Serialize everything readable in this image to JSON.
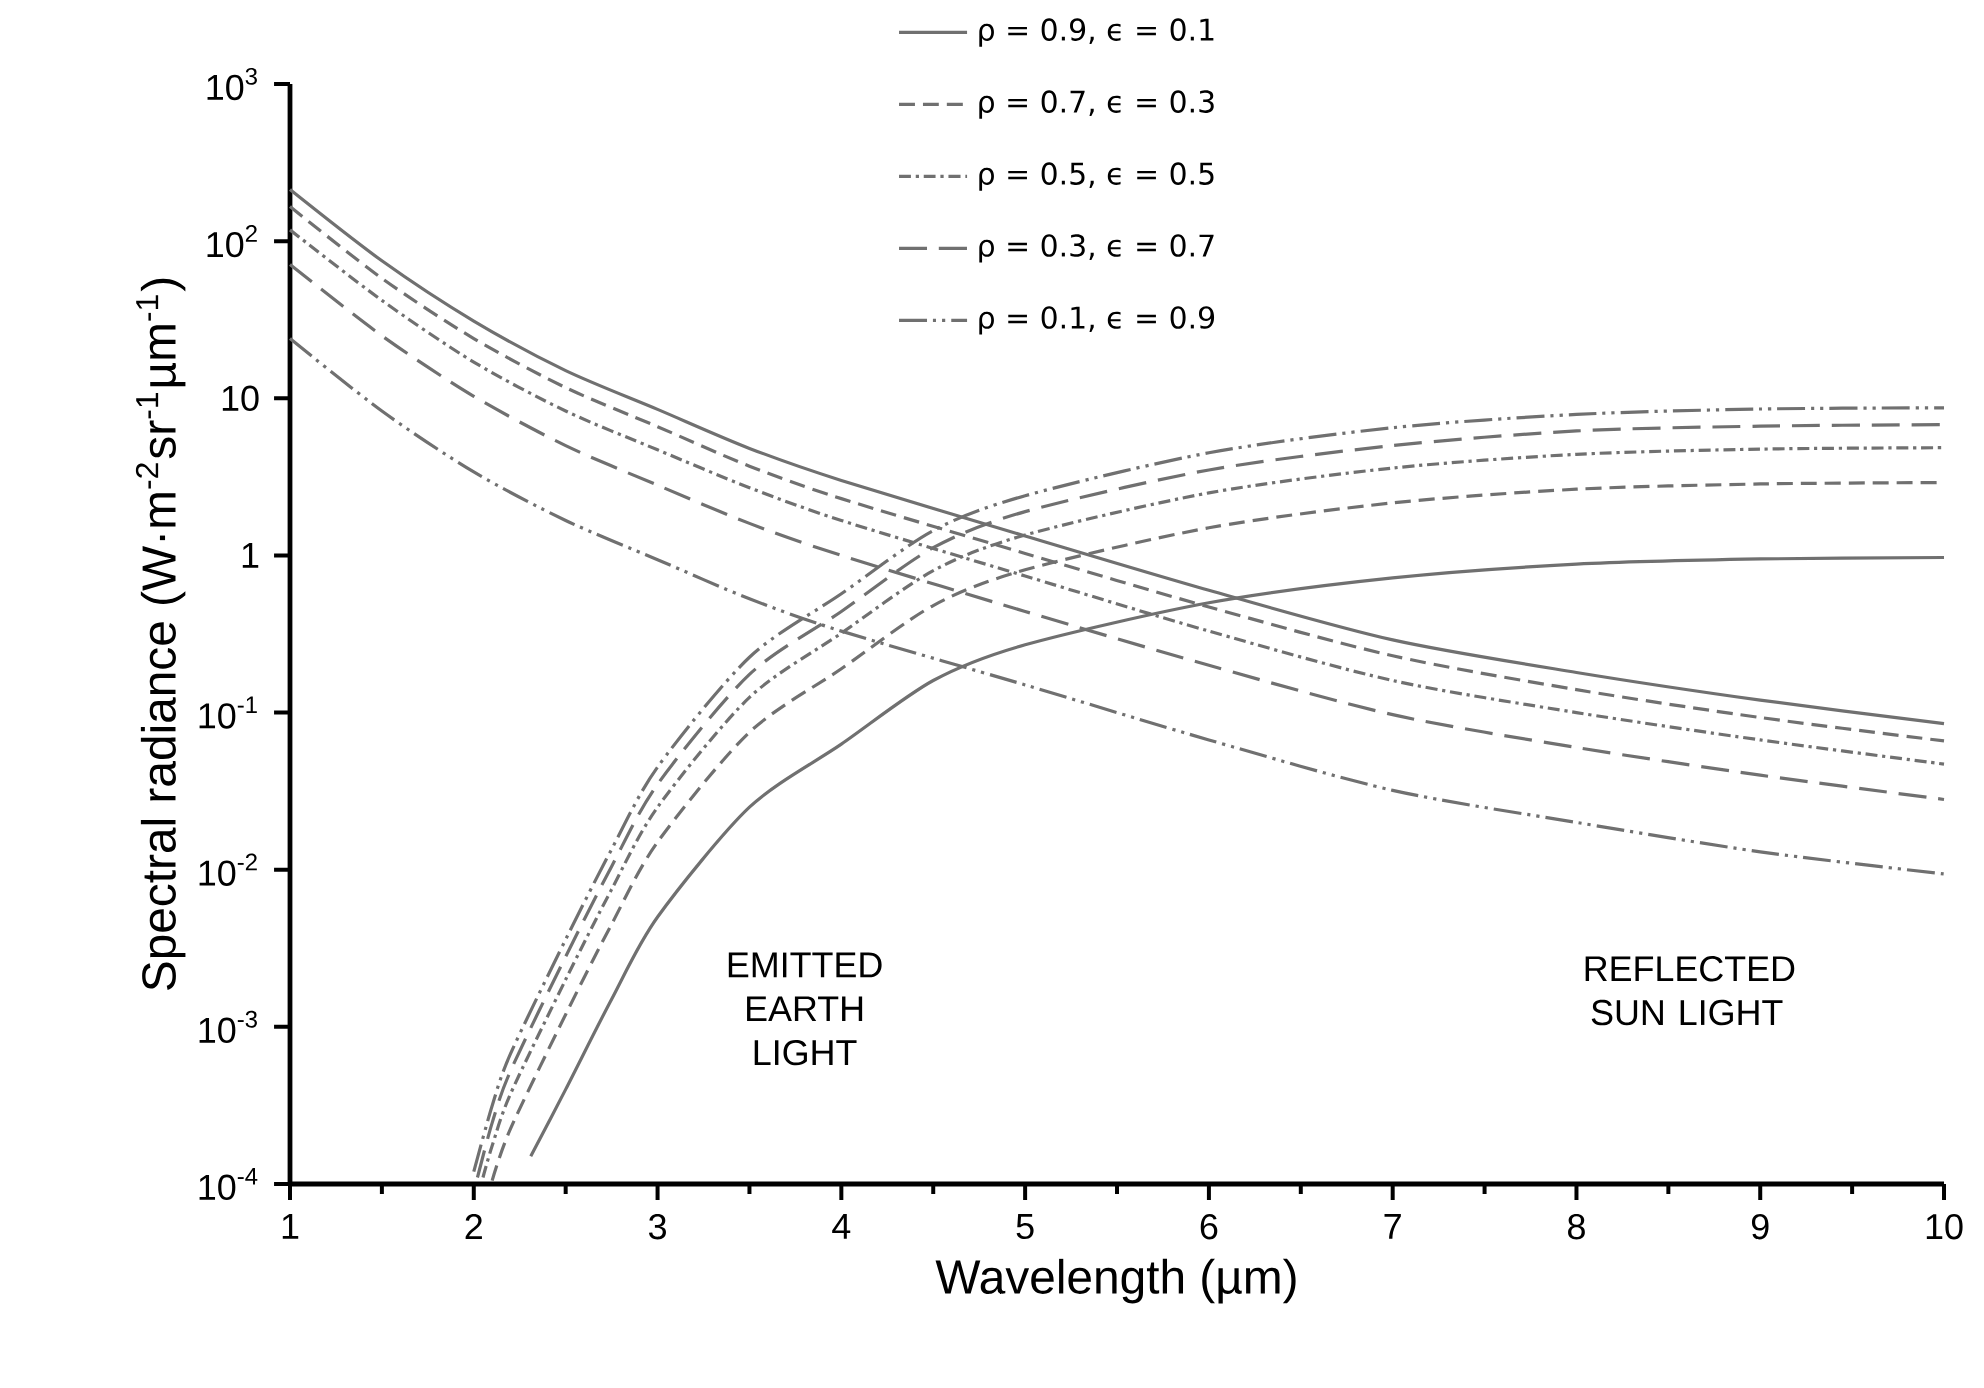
{
  "chart_data": {
    "type": "line",
    "xlabel": "Wavelength (µm)",
    "ylabel": "Spectral radiance (W·m$^{-2}$sr$^{-1}$µm$^{-1}$)",
    "xlim": [
      1,
      10
    ],
    "ylim": [
      0.0001,
      1000
    ],
    "log": "y",
    "legend": "top",
    "xticks": [
      1,
      2,
      3,
      4,
      5,
      6,
      7,
      8,
      9,
      10
    ],
    "yticks": [
      {
        "value": 0.0001,
        "label": "10$^{-4}$"
      },
      {
        "value": 0.001,
        "label": "10$^{-3}$"
      },
      {
        "value": 0.01,
        "label": "10$^{-2}$"
      },
      {
        "value": 0.1,
        "label": "10$^{-1}$"
      },
      1,
      10,
      {
        "value": 100,
        "label": "10$^{2}$"
      },
      {
        "value": 1000,
        "label": "10$^{3}$"
      }
    ],
    "annotations": [
      "EMITTED EARTH LIGHT",
      "REFLECTED SUN LIGHT"
    ],
    "series": [
      {
        "name": "ρ = 0.9, ϵ = 0.1",
        "color": "#707070",
        "line_style": "solid",
        "x": [
          1,
          1.5,
          2,
          2.5,
          3,
          3.5,
          4,
          5,
          6,
          7,
          8,
          9,
          10
        ],
        "values": [
          213,
          75,
          31,
          15,
          8.5,
          4.8,
          3.0,
          1.33,
          0.6,
          0.29,
          0.18,
          0.12,
          0.085
        ]
      },
      {
        "name": "ρ = 0.7, ϵ = 0.3",
        "color": "#707070",
        "line_style": "dashed",
        "x": [
          1,
          1.5,
          2,
          2.5,
          3,
          3.5,
          4,
          5,
          6,
          7,
          8,
          9,
          10
        ],
        "values": [
          166,
          58,
          24,
          11.7,
          6.6,
          3.7,
          2.3,
          1.03,
          0.47,
          0.23,
          0.14,
          0.093,
          0.066
        ]
      },
      {
        "name": "ρ = 0.5, ϵ = 0.5",
        "color": "#707070",
        "line_style": "dashdotted",
        "x": [
          1,
          1.5,
          2,
          2.5,
          3,
          3.5,
          4,
          5,
          6,
          7,
          8,
          9,
          10
        ],
        "values": [
          118,
          42,
          17,
          8.3,
          4.7,
          2.7,
          1.67,
          0.74,
          0.33,
          0.16,
          0.1,
          0.067,
          0.047
        ]
      },
      {
        "name": "ρ = 0.3, ϵ = 0.7",
        "color": "#707070",
        "line_style": "longdashed",
        "x": [
          1,
          1.5,
          2,
          2.5,
          3,
          3.5,
          4,
          5,
          6,
          7,
          8,
          9,
          10
        ],
        "values": [
          71,
          25,
          10.3,
          5,
          2.8,
          1.6,
          1.0,
          0.44,
          0.2,
          0.097,
          0.06,
          0.04,
          0.028
        ]
      },
      {
        "name": "ρ = 0.1, ϵ = 0.9",
        "color": "#707070",
        "line_style": "dashdotdotted",
        "x": [
          1,
          1.5,
          2,
          2.5,
          3,
          3.5,
          4,
          5,
          6,
          7,
          8,
          9,
          10
        ],
        "values": [
          24,
          8.3,
          3.4,
          1.67,
          0.94,
          0.53,
          0.33,
          0.15,
          0.067,
          0.032,
          0.02,
          0.013,
          0.0094
        ]
      },
      {
        "color": "#707070",
        "line_style": "solid",
        "x": [
          2.31,
          2.5,
          2.75,
          3,
          3.5,
          4,
          4.5,
          5,
          6,
          7,
          8,
          9,
          10
        ],
        "values": [
          0.00015,
          0.0004,
          0.0015,
          0.005,
          0.025,
          0.063,
          0.16,
          0.27,
          0.5,
          0.72,
          0.88,
          0.95,
          0.97
        ]
      },
      {
        "color": "#707070",
        "line_style": "dashed",
        "x": [
          2.1,
          2.2,
          2.5,
          2.75,
          3,
          3.5,
          4,
          4.5,
          5,
          6,
          7,
          8,
          9,
          10
        ],
        "values": [
          0.000105,
          0.000225,
          0.0012,
          0.0045,
          0.015,
          0.075,
          0.19,
          0.48,
          0.81,
          1.5,
          2.16,
          2.64,
          2.85,
          2.91
        ]
      },
      {
        "color": "#707070",
        "line_style": "dashdotted",
        "x": [
          2.05,
          2.1,
          2.2,
          2.5,
          2.75,
          3,
          3.5,
          4,
          4.5,
          5,
          6,
          7,
          8,
          9,
          10
        ],
        "values": [
          0.00011,
          0.000175,
          0.000375,
          0.002,
          0.0075,
          0.025,
          0.125,
          0.32,
          0.8,
          1.35,
          2.5,
          3.6,
          4.4,
          4.75,
          4.85
        ]
      },
      {
        "color": "#707070",
        "line_style": "longdashed",
        "x": [
          2.02,
          2.1,
          2.2,
          2.5,
          2.75,
          3,
          3.5,
          4,
          4.5,
          5,
          6,
          7,
          8,
          9,
          10
        ],
        "values": [
          0.00011,
          0.000245,
          0.000525,
          0.0028,
          0.0105,
          0.035,
          0.175,
          0.44,
          1.12,
          1.9,
          3.5,
          5.0,
          6.2,
          6.65,
          6.8
        ]
      },
      {
        "color": "#707070",
        "line_style": "dashdotdotted",
        "x": [
          2.0,
          2.1,
          2.2,
          2.5,
          2.75,
          3,
          3.5,
          4,
          4.5,
          5,
          6,
          7,
          8,
          9,
          10
        ],
        "values": [
          0.00012,
          0.000315,
          0.000675,
          0.0036,
          0.0135,
          0.045,
          0.225,
          0.57,
          1.44,
          2.4,
          4.5,
          6.5,
          7.9,
          8.55,
          8.7
        ]
      }
    ]
  }
}
